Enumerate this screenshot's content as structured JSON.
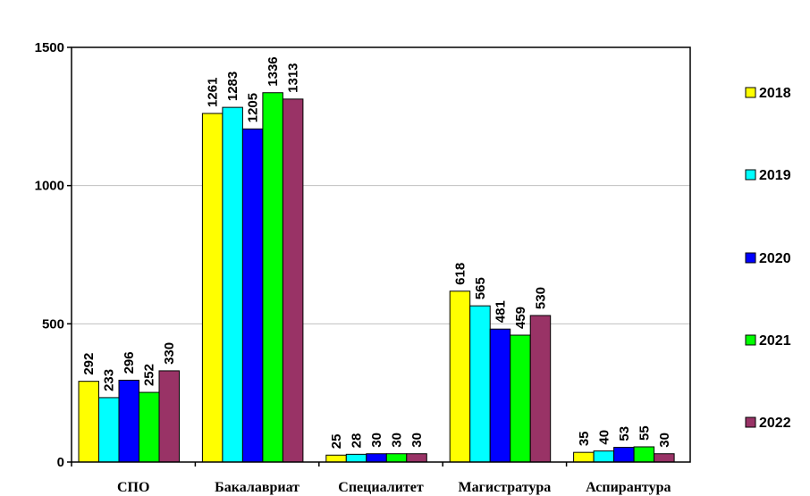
{
  "chart_data": {
    "type": "bar",
    "categories": [
      "СПО",
      "Бакалавриат",
      "Специалитет",
      "Магистратура",
      "Аспирантура"
    ],
    "series": [
      {
        "name": "2018",
        "color": "#ffff00",
        "values": [
          292,
          1261,
          25,
          618,
          35
        ]
      },
      {
        "name": "2019",
        "color": "#00ffff",
        "values": [
          233,
          1283,
          28,
          565,
          40
        ]
      },
      {
        "name": "2020",
        "color": "#0000ff",
        "values": [
          296,
          1205,
          30,
          481,
          53
        ]
      },
      {
        "name": "2021",
        "color": "#00ff00",
        "values": [
          252,
          1336,
          30,
          459,
          55
        ]
      },
      {
        "name": "2022",
        "color": "#993366",
        "values": [
          330,
          1313,
          30,
          530,
          30
        ]
      }
    ],
    "yticks": [
      0,
      500,
      1000,
      1500
    ],
    "ylim": [
      0,
      1500
    ],
    "grid": true,
    "legend_position": "right",
    "data_labels": "rotated-vertical"
  }
}
